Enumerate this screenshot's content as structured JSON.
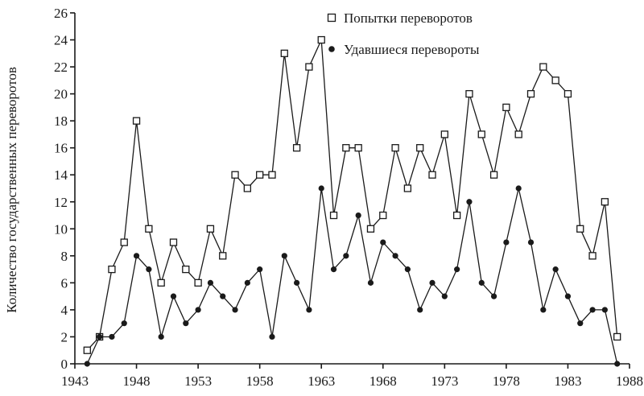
{
  "chart_data": {
    "type": "line",
    "ylabel": "Количество государственных переворотов",
    "xlabel": "",
    "xlim": [
      1943,
      1988
    ],
    "ylim": [
      0,
      26
    ],
    "x_ticks": [
      1943,
      1948,
      1953,
      1958,
      1963,
      1968,
      1973,
      1978,
      1983,
      1988
    ],
    "y_ticks": [
      0,
      2,
      4,
      6,
      8,
      10,
      12,
      14,
      16,
      18,
      20,
      22,
      24,
      26
    ],
    "legend_position": "top-center",
    "x": [
      1944,
      1945,
      1946,
      1947,
      1948,
      1949,
      1950,
      1951,
      1952,
      1953,
      1954,
      1955,
      1956,
      1957,
      1958,
      1959,
      1960,
      1961,
      1962,
      1963,
      1964,
      1965,
      1966,
      1967,
      1968,
      1969,
      1970,
      1971,
      1972,
      1973,
      1974,
      1975,
      1976,
      1977,
      1978,
      1979,
      1980,
      1981,
      1982,
      1983,
      1984,
      1985,
      1986,
      1987
    ],
    "series": [
      {
        "name": "Попытки переворотов",
        "marker": "square",
        "values": [
          1,
          2,
          7,
          9,
          18,
          10,
          6,
          9,
          7,
          6,
          10,
          8,
          14,
          13,
          14,
          14,
          23,
          16,
          22,
          24,
          11,
          16,
          16,
          10,
          11,
          16,
          13,
          16,
          14,
          17,
          11,
          20,
          17,
          14,
          19,
          17,
          20,
          22,
          21,
          20,
          10,
          8,
          12,
          2
        ]
      },
      {
        "name": "Удавшиеся перевороты",
        "marker": "dot",
        "values": [
          0,
          2,
          2,
          3,
          8,
          7,
          2,
          5,
          3,
          4,
          6,
          5,
          4,
          6,
          7,
          2,
          8,
          6,
          4,
          13,
          7,
          8,
          11,
          6,
          9,
          8,
          7,
          4,
          6,
          5,
          7,
          12,
          6,
          5,
          9,
          13,
          9,
          4,
          7,
          5,
          3,
          4,
          4,
          0
        ]
      }
    ]
  }
}
